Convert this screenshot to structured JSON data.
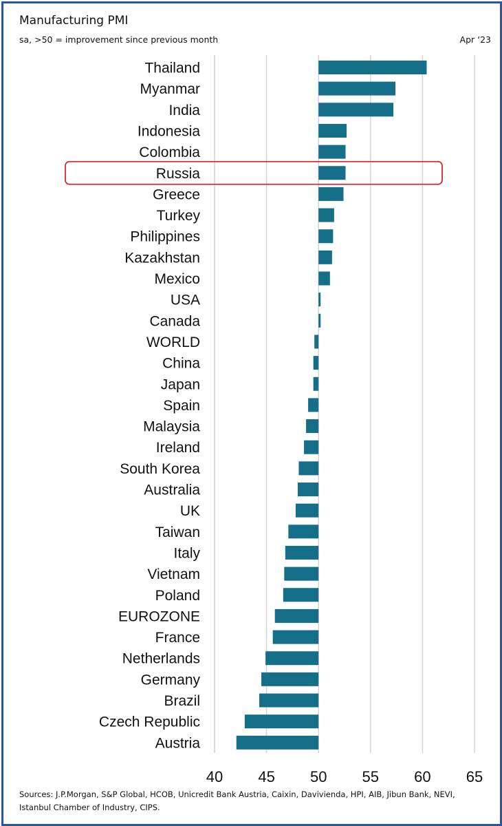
{
  "colors": {
    "bar": "#166f88",
    "grid": "#d4d4d4",
    "highlight": "#d42a2a",
    "frame": "#2a54a4"
  },
  "chart_data": {
    "type": "bar",
    "orientation": "horizontal",
    "title": "Manufacturing PMI",
    "subtitle": "sa, >50 = improvement since previous month",
    "date_label": "Apr ‘23",
    "baseline": 50,
    "xlim": [
      40,
      65
    ],
    "xticks": [
      40,
      45,
      50,
      55,
      60,
      65
    ],
    "grid": true,
    "highlight": "Russia",
    "categories": [
      "Thailand",
      "Myanmar",
      "India",
      "Indonesia",
      "Colombia",
      "Russia",
      "Greece",
      "Turkey",
      "Philippines",
      "Kazakhstan",
      "Mexico",
      "USA",
      "Canada",
      "WORLD",
      "China",
      "Japan",
      "Spain",
      "Malaysia",
      "Ireland",
      "South Korea",
      "Australia",
      "UK",
      "Taiwan",
      "Italy",
      "Vietnam",
      "Poland",
      "EUROZONE",
      "France",
      "Netherlands",
      "Germany",
      "Brazil",
      "Czech Republic",
      "Austria"
    ],
    "values": [
      60.4,
      57.4,
      57.2,
      52.7,
      52.6,
      52.6,
      52.4,
      51.5,
      51.4,
      51.3,
      51.1,
      50.2,
      50.2,
      49.6,
      49.5,
      49.5,
      49.0,
      48.8,
      48.6,
      48.1,
      48.0,
      47.8,
      47.1,
      46.8,
      46.7,
      46.6,
      45.8,
      45.6,
      44.9,
      44.5,
      44.3,
      42.9,
      42.1
    ],
    "source": "Sources: J.P.Morgan, S&P Global, HCOB, Unicredit Bank Austria, Caixin, Davivienda, HPI, AIB, Jibun Bank, NEVI, Istanbul Chamber of Industry, CIPS."
  }
}
